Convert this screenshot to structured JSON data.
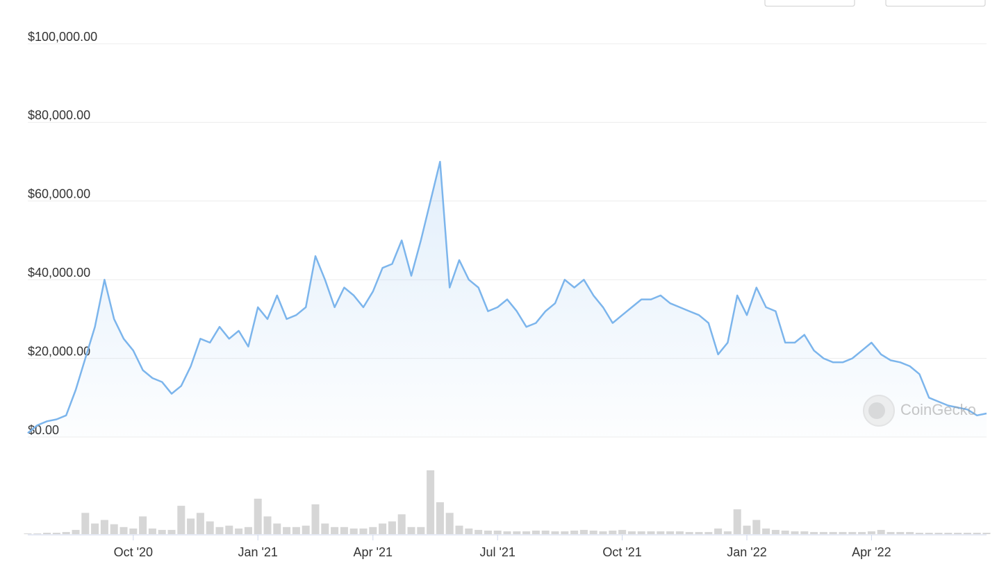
{
  "chart_data": {
    "type": "area",
    "yticks": [
      {
        "value": 0,
        "label": "$0.00"
      },
      {
        "value": 20000,
        "label": "$20,000.00"
      },
      {
        "value": 40000,
        "label": "$40,000.00"
      },
      {
        "value": 60000,
        "label": "$60,000.00"
      },
      {
        "value": 80000,
        "label": "$80,000.00"
      },
      {
        "value": 100000,
        "label": "$100,000.00"
      }
    ],
    "ylim": [
      0,
      100000
    ],
    "grid": true,
    "color": "#7cb5ec",
    "watermark": "CoinGecko",
    "categories": [
      null,
      null,
      null,
      null,
      null,
      null,
      null,
      null,
      null,
      null,
      null,
      "Oct '20",
      null,
      null,
      null,
      null,
      null,
      null,
      null,
      null,
      null,
      null,
      null,
      null,
      "Jan '21",
      null,
      null,
      null,
      null,
      null,
      null,
      null,
      null,
      null,
      null,
      null,
      "Apr '21",
      null,
      null,
      null,
      null,
      null,
      null,
      null,
      null,
      null,
      null,
      null,
      null,
      "Jul '21",
      null,
      null,
      null,
      null,
      null,
      null,
      null,
      null,
      null,
      null,
      null,
      null,
      "Oct '21",
      null,
      null,
      null,
      null,
      null,
      null,
      null,
      null,
      null,
      null,
      null,
      null,
      "Jan '22",
      null,
      null,
      null,
      null,
      null,
      null,
      null,
      null,
      null,
      null,
      null,
      null,
      "Apr '22",
      null,
      null,
      null,
      null,
      null,
      null,
      null,
      null,
      null,
      null,
      null,
      null
    ],
    "values": [
      1000,
      3000,
      4000,
      4500,
      5500,
      12000,
      20000,
      28000,
      40000,
      30000,
      25000,
      22000,
      17000,
      15000,
      14000,
      11000,
      13000,
      18000,
      25000,
      24000,
      28000,
      25000,
      27000,
      23000,
      33000,
      30000,
      36000,
      30000,
      31000,
      33000,
      46000,
      40000,
      33000,
      38000,
      36000,
      33000,
      37000,
      43000,
      44000,
      50000,
      41000,
      50000,
      60000,
      70000,
      38000,
      45000,
      40000,
      38000,
      32000,
      33000,
      35000,
      32000,
      28000,
      29000,
      32000,
      34000,
      40000,
      38000,
      40000,
      36000,
      33000,
      29000,
      31000,
      33000,
      35000,
      35000,
      36000,
      34000,
      33000,
      32000,
      31000,
      29000,
      21000,
      24000,
      36000,
      31000,
      38000,
      33000,
      32000,
      24000,
      24000,
      26000,
      22000,
      20000,
      19000,
      19000,
      20000,
      22000,
      24000,
      21000,
      19500,
      19000,
      18000,
      16000,
      10000,
      9000,
      8000,
      7500,
      7000,
      5500,
      6000
    ],
    "volume": {
      "color": "#d6d6d6",
      "values": [
        1,
        1,
        2,
        2,
        3,
        6,
        30,
        15,
        20,
        14,
        10,
        8,
        25,
        8,
        6,
        6,
        40,
        22,
        30,
        18,
        10,
        12,
        8,
        10,
        50,
        25,
        15,
        10,
        10,
        12,
        42,
        15,
        10,
        10,
        8,
        8,
        10,
        15,
        18,
        28,
        10,
        10,
        90,
        45,
        30,
        12,
        8,
        6,
        5,
        5,
        4,
        4,
        4,
        5,
        5,
        4,
        4,
        5,
        6,
        5,
        4,
        5,
        6,
        4,
        4,
        4,
        4,
        4,
        4,
        3,
        3,
        3,
        8,
        4,
        35,
        12,
        20,
        8,
        6,
        5,
        4,
        4,
        3,
        3,
        3,
        3,
        3,
        3,
        4,
        6,
        3,
        3,
        3,
        2,
        2,
        2,
        2,
        2,
        2,
        2,
        2
      ]
    }
  }
}
